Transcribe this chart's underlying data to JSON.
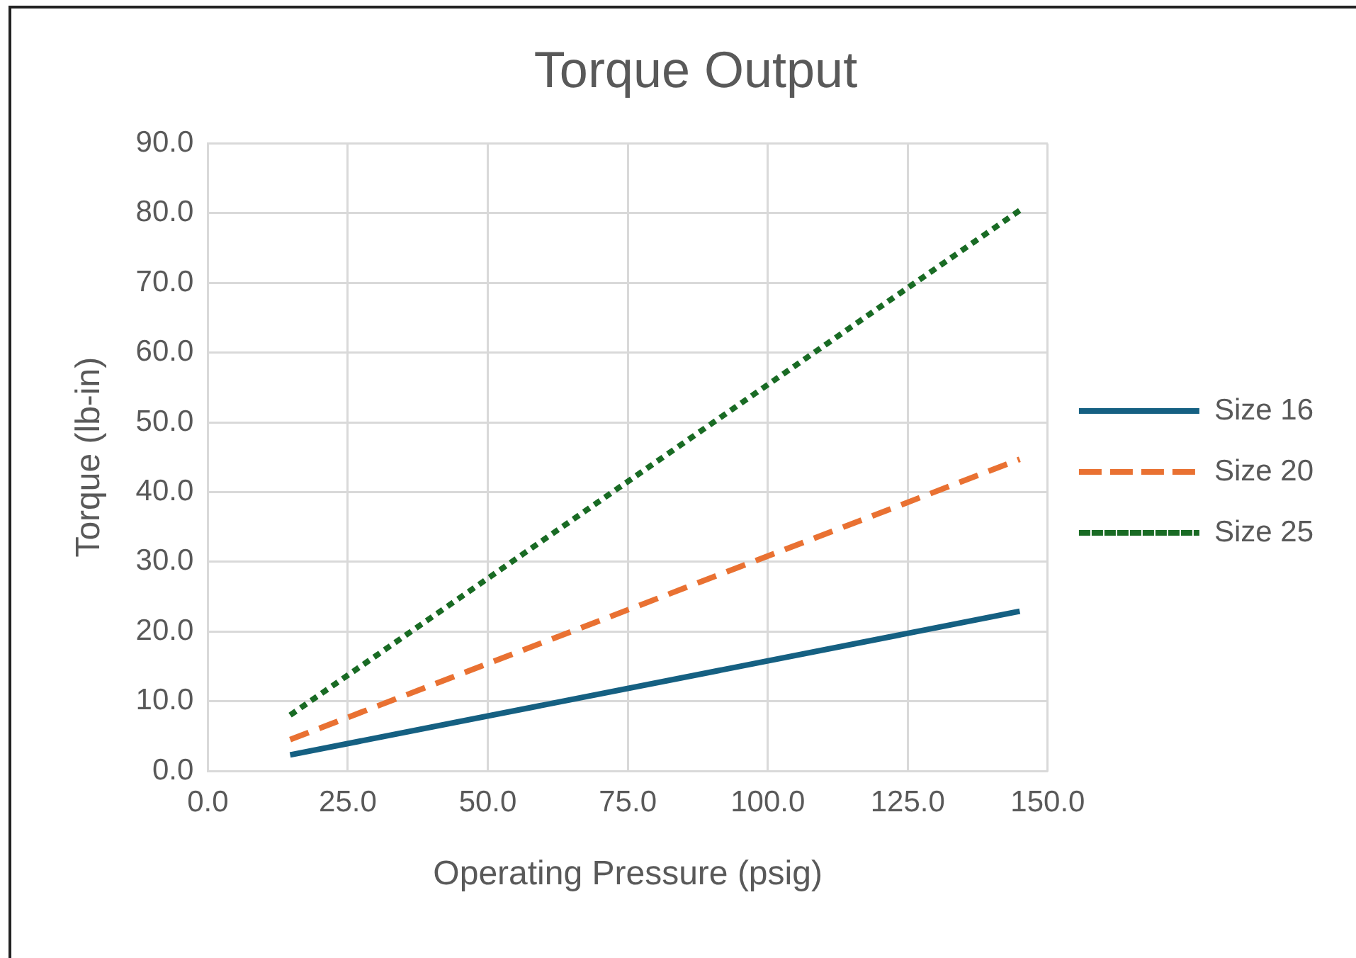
{
  "chart_data": {
    "type": "line",
    "title": "Torque Output",
    "xlabel": "Operating Pressure (psig)",
    "ylabel": "Torque (lb-in)",
    "x": [
      14.7,
      145
    ],
    "series": [
      {
        "name": "Size 16",
        "color": "#156082",
        "values": [
          2.3,
          22.9
        ],
        "line_style": "solid"
      },
      {
        "name": "Size 20",
        "color": "#e97132",
        "values": [
          4.5,
          44.7
        ],
        "line_style": "dashed"
      },
      {
        "name": "Size 25",
        "color": "#196b24",
        "values": [
          8.0,
          80.4
        ],
        "line_style": "dotted"
      }
    ],
    "xlim": [
      0,
      150
    ],
    "xticks": [
      {
        "value": 0,
        "label": "0.0"
      },
      {
        "value": 25,
        "label": "25.0"
      },
      {
        "value": 50,
        "label": "50.0"
      },
      {
        "value": 75,
        "label": "75.0"
      },
      {
        "value": 100,
        "label": "100.0"
      },
      {
        "value": 125,
        "label": "125.0"
      },
      {
        "value": 150,
        "label": "150.0"
      }
    ],
    "ylim": [
      0,
      90
    ],
    "yticks": [
      {
        "value": 0,
        "label": "0.0"
      },
      {
        "value": 10,
        "label": "10.0"
      },
      {
        "value": 20,
        "label": "20.0"
      },
      {
        "value": 30,
        "label": "30.0"
      },
      {
        "value": 40,
        "label": "40.0"
      },
      {
        "value": 50,
        "label": "50.0"
      },
      {
        "value": 60,
        "label": "60.0"
      },
      {
        "value": 70,
        "label": "70.0"
      },
      {
        "value": 80,
        "label": "80.0"
      },
      {
        "value": 90,
        "label": "90.0"
      }
    ],
    "grid": true,
    "legend": "right",
    "marker": "none"
  }
}
